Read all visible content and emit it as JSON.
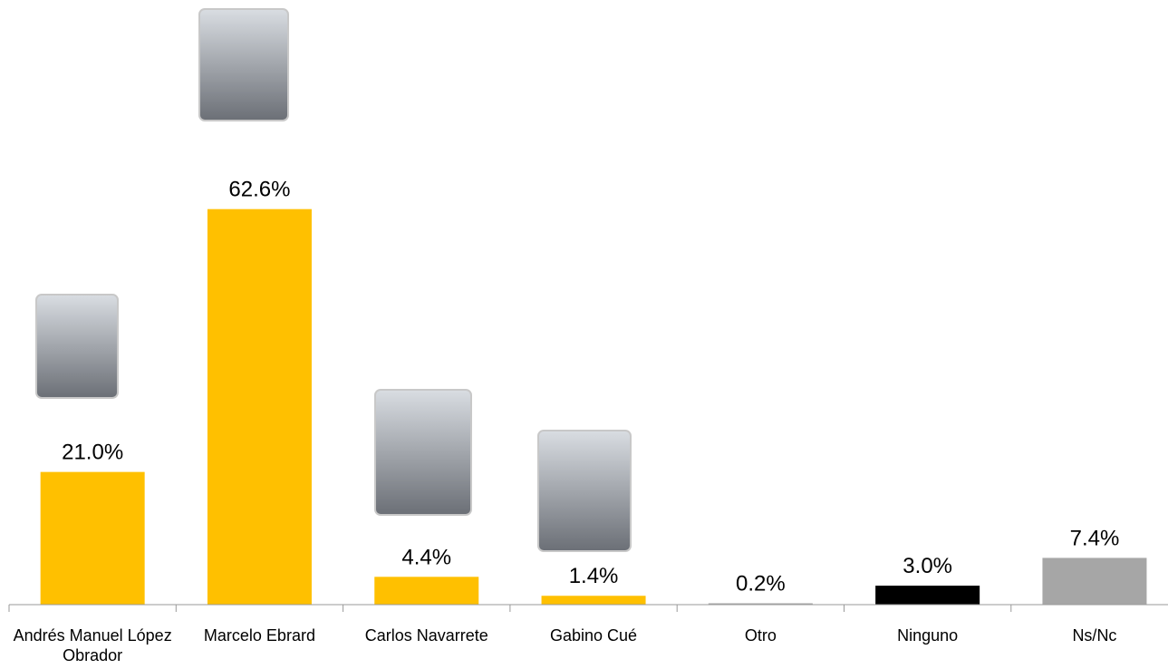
{
  "chart_data": {
    "type": "bar",
    "categories": [
      "Andrés Manuel López Obrador",
      "Marcelo Ebrard",
      "Carlos Navarrete",
      "Gabino Cué",
      "Otro",
      "Ninguno",
      "Ns/Nc"
    ],
    "values": [
      21.0,
      62.6,
      4.4,
      1.4,
      0.2,
      3.0,
      7.4
    ],
    "value_labels": [
      "21.0%",
      "62.6%",
      "4.4%",
      "1.4%",
      "0.2%",
      "3.0%",
      "7.4%"
    ],
    "colors": [
      "#ffc000",
      "#ffc000",
      "#ffc000",
      "#ffc000",
      "#a6a6a6",
      "#000000",
      "#a6a6a6"
    ]
  }
}
